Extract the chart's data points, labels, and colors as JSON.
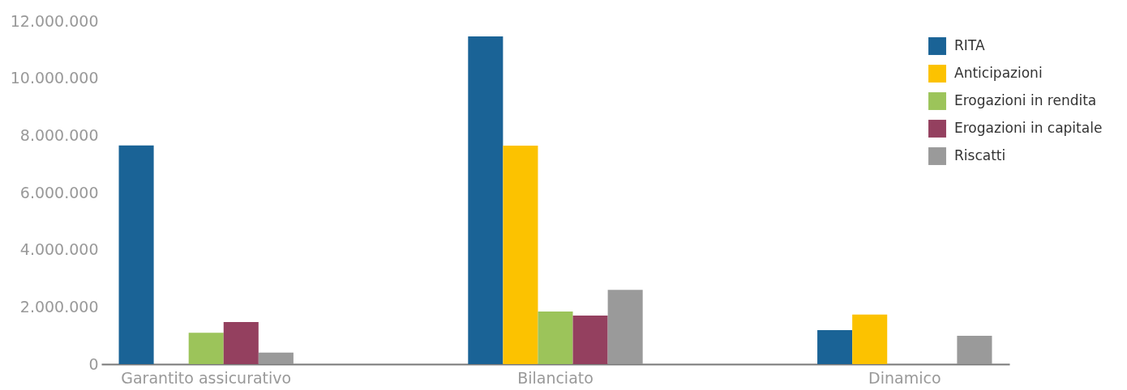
{
  "chart_data": {
    "type": "bar",
    "categories": [
      "Garantito assicurativo",
      "Bilanciato",
      "Dinamico"
    ],
    "series": [
      {
        "name": "RITA",
        "color": "#1a6396",
        "values": [
          7650000,
          11460000,
          1190000
        ]
      },
      {
        "name": "Anticipazioni",
        "color": "#fcc200",
        "values": [
          null,
          7640000,
          1730000
        ]
      },
      {
        "name": "Erogazioni in rendita",
        "color": "#9cc45a",
        "values": [
          1100000,
          1840000,
          null
        ]
      },
      {
        "name": "Erogazioni in capitale",
        "color": "#94405f",
        "values": [
          1470000,
          1700000,
          null
        ]
      },
      {
        "name": "Riscatti",
        "color": "#9a9a9a",
        "values": [
          400000,
          2600000,
          990000
        ]
      }
    ],
    "ylim": [
      0,
      12000000
    ],
    "yticks": [
      0,
      {
        "value": 2000000,
        "label": "2.000.000"
      },
      {
        "value": 4000000,
        "label": "4.000.000"
      },
      {
        "value": 6000000,
        "label": "6.000.000"
      },
      {
        "value": 8000000,
        "label": "8.000.000"
      },
      {
        "value": 10000000,
        "label": "10.000.000"
      },
      {
        "value": 12000000,
        "label": "12.000.000"
      }
    ],
    "grid": false,
    "legend": "top right"
  }
}
